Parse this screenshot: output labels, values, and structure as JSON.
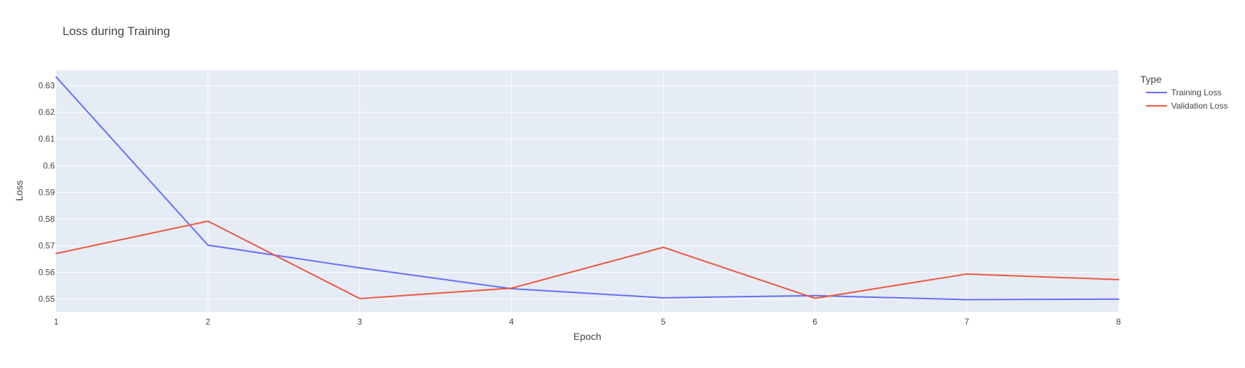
{
  "chart_data": {
    "type": "line",
    "title": "Loss during Training",
    "xlabel": "Epoch",
    "ylabel": "Loss",
    "x": [
      1,
      2,
      3,
      4,
      5,
      6,
      7,
      8
    ],
    "xlim": [
      1,
      8
    ],
    "ylim": [
      0.5452,
      0.6358
    ],
    "xticks": [
      "1",
      "2",
      "3",
      "4",
      "5",
      "6",
      "7",
      "8"
    ],
    "yticks": [
      "0.55",
      "0.56",
      "0.57",
      "0.58",
      "0.59",
      "0.6",
      "0.61",
      "0.62",
      "0.63"
    ],
    "ytick_values": [
      0.55,
      0.56,
      0.57,
      0.58,
      0.59,
      0.6,
      0.61,
      0.62,
      0.63
    ],
    "grid": true,
    "legend": {
      "title": "Type",
      "position": "right"
    },
    "series": [
      {
        "name": "Training Loss",
        "color": "#636efa",
        "values": [
          0.6332,
          0.5702,
          0.5617,
          0.5539,
          0.5505,
          0.5513,
          0.5498,
          0.55
        ]
      },
      {
        "name": "Validation Loss",
        "color": "#ef553b",
        "values": [
          0.5671,
          0.5792,
          0.5502,
          0.5541,
          0.5694,
          0.5503,
          0.5594,
          0.5573
        ]
      }
    ]
  }
}
